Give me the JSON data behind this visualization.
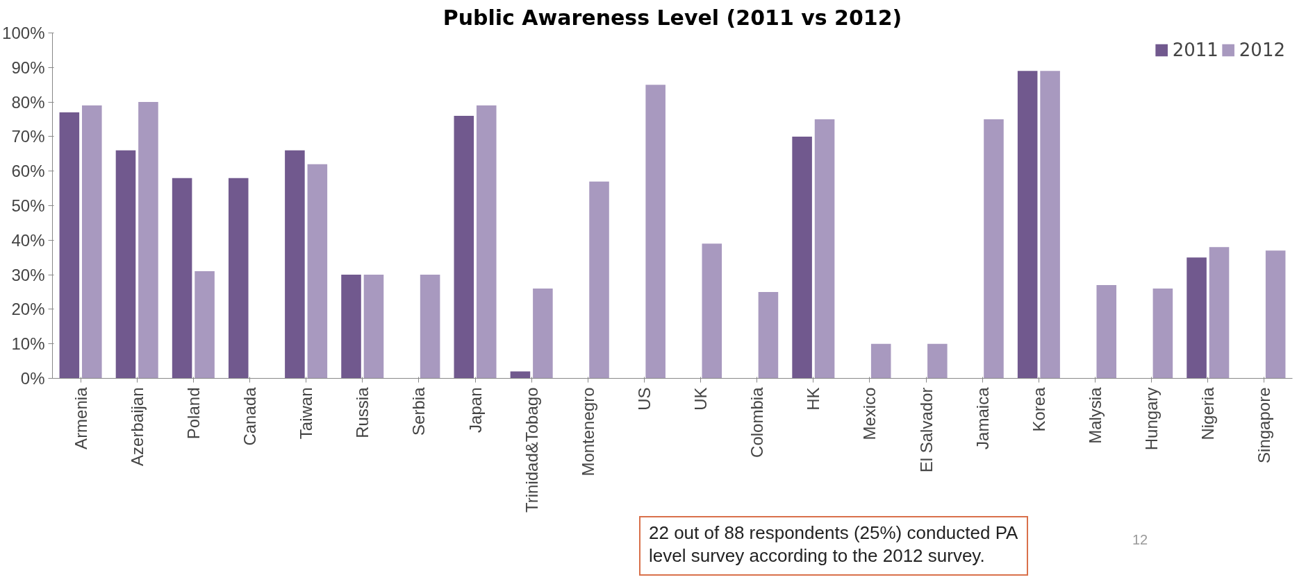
{
  "chart_data": {
    "type": "bar",
    "title": "Public Awareness Level (2011 vs 2012)",
    "categories": [
      "Armenia",
      "Azerbaijan",
      "Poland",
      "Canada",
      "Taiwan",
      "Russia",
      "Serbia",
      "Japan",
      "Trinidad&Tobago",
      "Montenegro",
      "US",
      "UK",
      "Colombia",
      "HK",
      "Mexico",
      "El Salvador",
      "Jamaica",
      "Korea",
      "Malysia",
      "Hungary",
      "Nigeria",
      "Singapore"
    ],
    "series": [
      {
        "name": "2011",
        "color": "#71598e",
        "values": [
          77,
          66,
          58,
          58,
          66,
          30,
          null,
          76,
          2,
          null,
          null,
          null,
          null,
          70,
          null,
          null,
          null,
          89,
          null,
          null,
          35,
          null
        ]
      },
      {
        "name": "2012",
        "color": "#a899bf",
        "values": [
          79,
          80,
          31,
          null,
          62,
          30,
          30,
          79,
          26,
          57,
          85,
          39,
          25,
          75,
          10,
          10,
          75,
          89,
          27,
          26,
          38,
          37
        ]
      }
    ],
    "ylim": [
      0,
      100
    ],
    "yticks": [
      {
        "value": 0,
        "label": "0%"
      },
      {
        "value": 10,
        "label": "10%"
      },
      {
        "value": 20,
        "label": "20%"
      },
      {
        "value": 30,
        "label": "30%"
      },
      {
        "value": 40,
        "label": "40%"
      },
      {
        "value": 50,
        "label": "50%"
      },
      {
        "value": 60,
        "label": "60%"
      },
      {
        "value": 70,
        "label": "70%"
      },
      {
        "value": 80,
        "label": "80%"
      },
      {
        "value": 90,
        "label": "90%"
      },
      {
        "value": 100,
        "label": "100%"
      }
    ],
    "grid": false,
    "legend": "top right",
    "annotations": [
      "22 out of 88 respondents (25%) conducted PA level survey according to the 2012 survey.",
      "12"
    ]
  }
}
